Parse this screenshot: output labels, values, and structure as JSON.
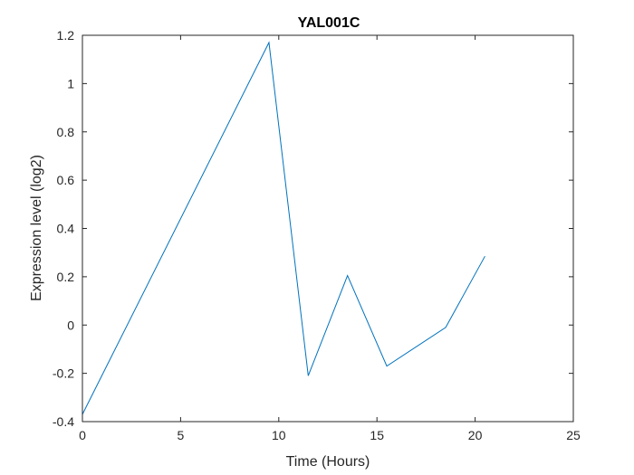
{
  "chart_data": {
    "type": "line",
    "title": "YAL001C",
    "xlabel": "Time (Hours)",
    "ylabel": "Expression level (log2)",
    "xlim": [
      0,
      25
    ],
    "ylim": [
      -0.4,
      1.2
    ],
    "xticks": [
      0,
      5,
      10,
      15,
      20,
      25
    ],
    "xtick_labels": [
      "0",
      "5",
      "10",
      "15",
      "20",
      "25"
    ],
    "yticks": [
      -0.4,
      -0.2,
      0,
      0.2,
      0.4,
      0.6,
      0.8,
      1.0,
      1.2
    ],
    "ytick_labels": [
      "-0.4",
      "-0.2",
      "0",
      "0.2",
      "0.4",
      "0.6",
      "0.8",
      "1",
      "1.2"
    ],
    "grid": false,
    "series": [
      {
        "color": "#0072bd",
        "x": [
          0,
          9.5,
          11.5,
          13.5,
          15.5,
          18.5,
          20.5
        ],
        "y": [
          -0.37,
          1.17,
          -0.21,
          0.205,
          -0.17,
          -0.01,
          0.285
        ]
      }
    ]
  }
}
